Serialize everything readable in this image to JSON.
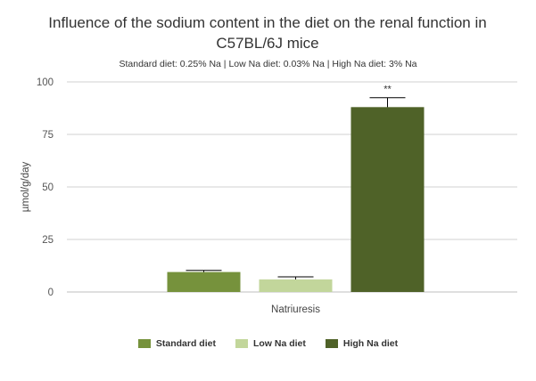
{
  "chart_data": {
    "type": "bar",
    "title": "Influence of the sodium content in the diet on the renal function in C57BL/6J mice",
    "subtitle": "Standard diet: 0.25% Na | Low Na diet: 0.03% Na | High Na diet: 3% Na",
    "xlabel": "",
    "ylabel": "µmol/g/day",
    "ylim": [
      0,
      100
    ],
    "yticks": [
      "0",
      "25",
      "50",
      "75",
      "100"
    ],
    "categories": [
      "Natriuresis"
    ],
    "grid": true,
    "legend_position": "bottom",
    "series": [
      {
        "name": "Standard diet",
        "values": [
          9.5
        ],
        "error": [
          0.8
        ],
        "color": "#76923c"
      },
      {
        "name": "Low Na diet",
        "values": [
          6
        ],
        "error": [
          1.2
        ],
        "color": "#c2d69b"
      },
      {
        "name": "High Na diet",
        "values": [
          88
        ],
        "error": [
          4.5
        ],
        "color": "#4f6228",
        "annotation": "**"
      }
    ]
  }
}
